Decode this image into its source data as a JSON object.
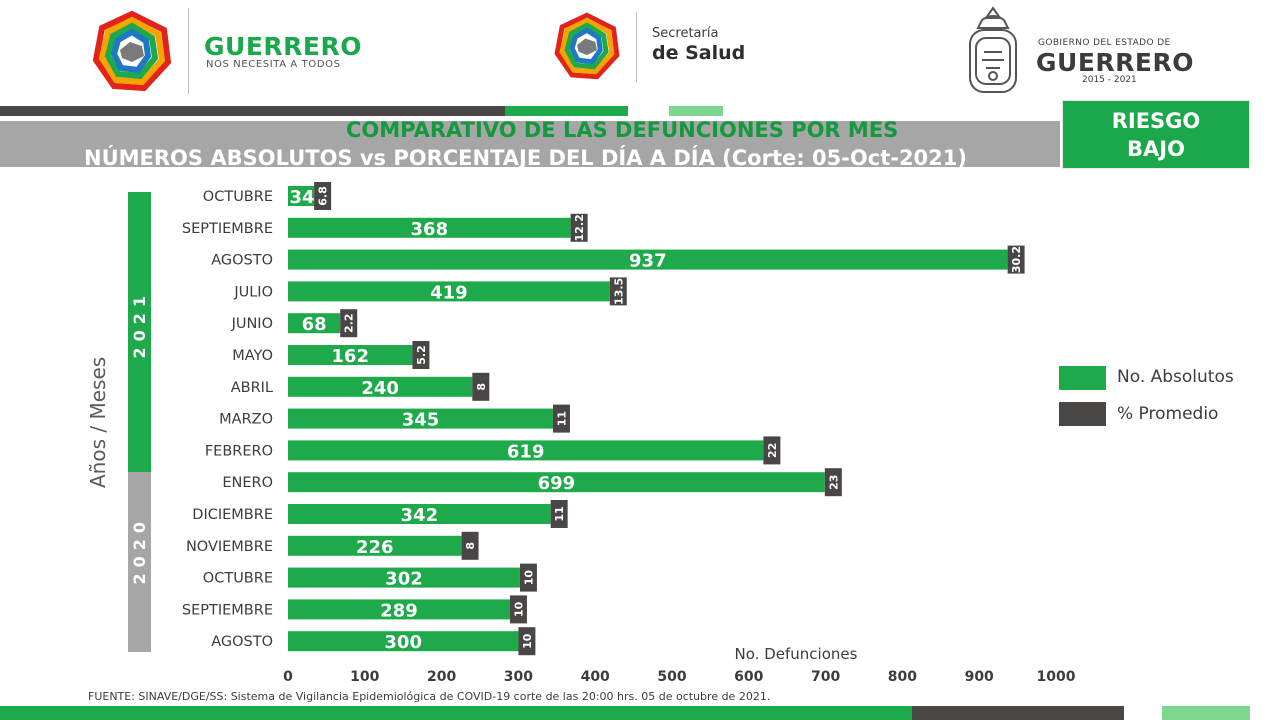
{
  "header": {
    "left_logo_title": "GUERRERO",
    "left_logo_subtitle": "NOS NECESITA A TODOS",
    "center_logo_line1": "Secretaría",
    "center_logo_line2": "de Salud",
    "right_logo_line1": "GOBIERNO DEL ESTADO DE",
    "right_logo_line2": "GUERRERO",
    "right_logo_line3": "2015 - 2021"
  },
  "title": {
    "line1": "COMPARATIVO DE LAS DEFUNCIONES POR MES",
    "line2": "NÚMEROS ABSOLUTOS vs PORCENTAJE DEL DÍA A DÍA   (Corte: 05-Oct-2021)"
  },
  "risk_badge": {
    "line1": "RIESGO",
    "line2": "BAJO"
  },
  "colors": {
    "green": "#1ea94b",
    "dark": "#4a4646",
    "gray": "#a6a6a6",
    "light_green": "#7ed690"
  },
  "chart_data": {
    "type": "bar",
    "orientation": "horizontal",
    "categories": [
      "OCTUBRE",
      "SEPTIEMBRE",
      "AGOSTO",
      "JULIO",
      "JUNIO",
      "MAYO",
      "ABRIL",
      "MARZO",
      "FEBRERO",
      "ENERO",
      "DICIEMBRE",
      "NOVIEMBRE",
      "OCTUBRE",
      "SEPTIEMBRE",
      "AGOSTO"
    ],
    "groups": [
      {
        "name": "2021",
        "count": 10,
        "color": "#1ea94b"
      },
      {
        "name": "2020",
        "count": 5,
        "color": "#a6a6a6"
      }
    ],
    "series": [
      {
        "name": "No. Absolutos",
        "values": [
          34,
          368,
          937,
          419,
          68,
          162,
          240,
          345,
          619,
          699,
          342,
          226,
          302,
          289,
          300
        ],
        "color": "#1ea94b"
      },
      {
        "name": "% Promedio",
        "values": [
          "6.8",
          "12.2",
          "30.2",
          "13.5",
          "2.2",
          "5.2",
          "8",
          "11",
          "22",
          "23",
          "11",
          "8",
          "10",
          "10",
          "10"
        ],
        "color": "#4a4646"
      }
    ],
    "xlabel": "No. Defunciones",
    "ylabel": "Años / Meses",
    "xlim": [
      0,
      1000
    ],
    "xticks": [
      "0",
      "100",
      "200",
      "300",
      "400",
      "500",
      "600",
      "700",
      "800",
      "900",
      "1000"
    ],
    "legend_position": "right"
  },
  "source": "FUENTE: SINAVE/DGE/SS: Sistema de Vigilancia Epidemiológica de COVID-19 corte de las 20:00 hrs. 05 de octubre de 2021."
}
